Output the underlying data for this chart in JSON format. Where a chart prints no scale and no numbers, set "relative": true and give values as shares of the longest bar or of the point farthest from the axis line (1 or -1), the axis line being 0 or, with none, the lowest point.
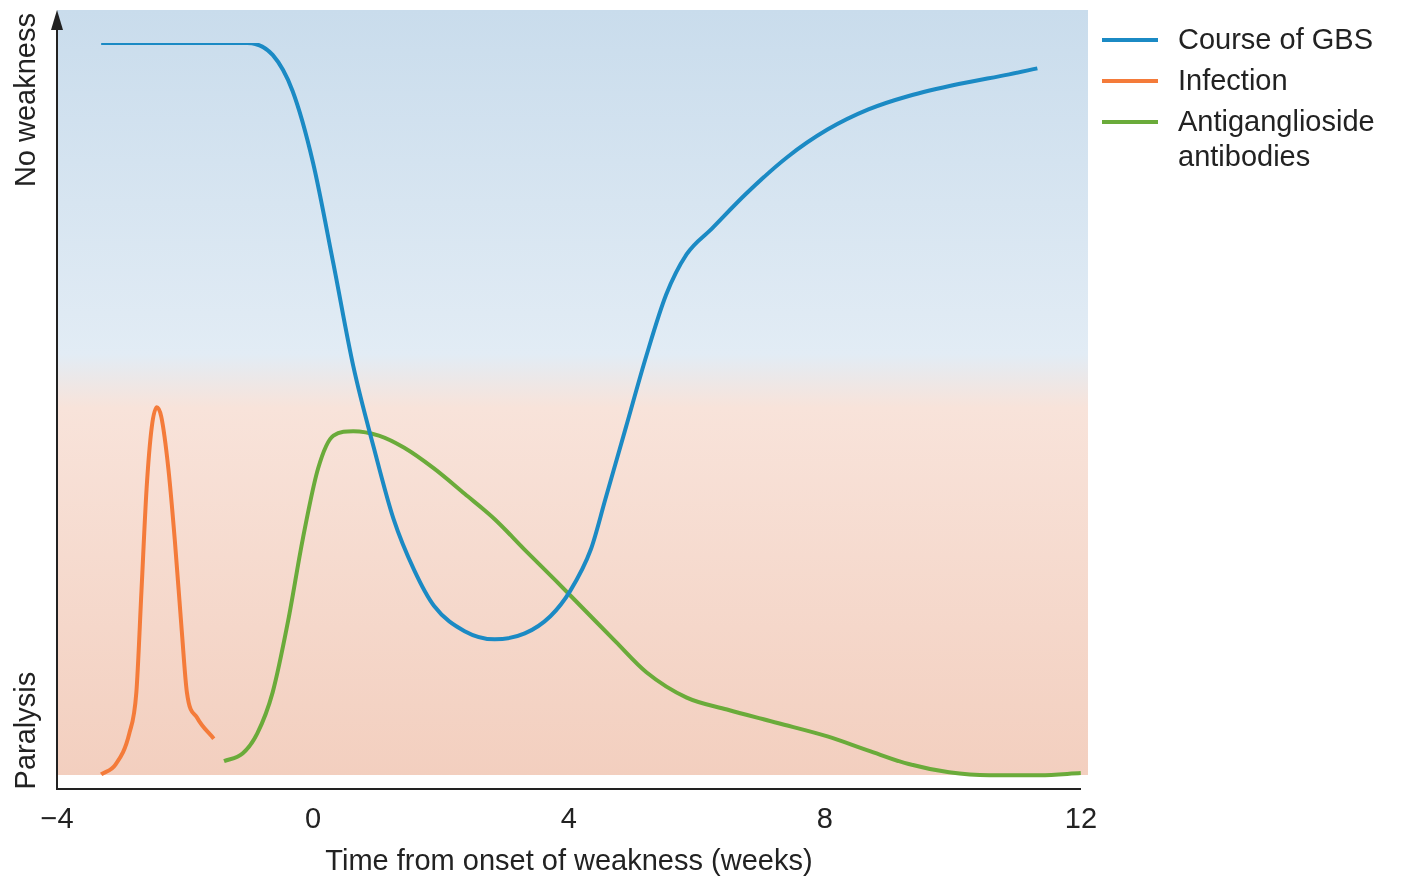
{
  "chart_data": {
    "type": "line",
    "relative": true,
    "xlabel": "Time from onset of weakness (weeks)",
    "xlim": [
      -4,
      12
    ],
    "xticks": [
      {
        "value": -4,
        "label": "−4"
      },
      0,
      4,
      8,
      12
    ],
    "grid": false,
    "legend": "top right",
    "marker": "none",
    "line_style": "solid",
    "annotations": [
      "No weakness",
      "Paralysis"
    ],
    "series": [
      {
        "name": "Course of GBS",
        "color": "#1b8ac4",
        "x": [
          -3.31,
          -1.03,
          -0.63,
          -0.32,
          0,
          0.32,
          0.63,
          0.95,
          1.26,
          1.58,
          1.89,
          2.37,
          2.84,
          3.31,
          3.71,
          4.02,
          4.34,
          4.57,
          4.89,
          5.21,
          5.52,
          5.84,
          6.23,
          6.78,
          7.41,
          8.04,
          8.68,
          9.31,
          10.09,
          10.88,
          11.32
        ],
        "values": [
          1.0,
          1.0,
          0.984,
          0.936,
          0.84,
          0.704,
          0.567,
          0.458,
          0.362,
          0.294,
          0.246,
          0.212,
          0.201,
          0.209,
          0.232,
          0.266,
          0.321,
          0.389,
          0.485,
          0.581,
          0.663,
          0.717,
          0.751,
          0.799,
          0.847,
          0.884,
          0.911,
          0.929,
          0.945,
          0.958,
          0.966
        ]
      },
      {
        "name": "Infection",
        "color": "#f47b3a",
        "x": [
          -3.31,
          -3.08,
          -2.87,
          -2.76,
          -2.68,
          -2.6,
          -2.52,
          -2.44,
          -2.37,
          -2.26,
          -2.16,
          -2.05,
          -1.97,
          -1.81,
          -1.55
        ],
        "values": [
          0.02,
          0.034,
          0.075,
          0.13,
          0.266,
          0.403,
          0.485,
          0.512,
          0.499,
          0.43,
          0.335,
          0.212,
          0.13,
          0.096,
          0.068
        ]
      },
      {
        "name": "Antiganglioside antibodies",
        "color": "#6aab3a",
        "x": [
          -1.39,
          -1.1,
          -0.87,
          -0.63,
          -0.39,
          -0.16,
          0.08,
          0.32,
          0.63,
          1.03,
          1.42,
          1.89,
          2.37,
          2.84,
          3.31,
          3.79,
          4.26,
          4.73,
          5.21,
          5.84,
          6.47,
          7.26,
          8.04,
          8.68,
          9.31,
          9.94,
          10.57,
          11.36,
          12.0
        ],
        "values": [
          0.038,
          0.048,
          0.075,
          0.13,
          0.225,
          0.335,
          0.43,
          0.474,
          0.48,
          0.474,
          0.458,
          0.43,
          0.396,
          0.362,
          0.321,
          0.28,
          0.239,
          0.198,
          0.157,
          0.123,
          0.107,
          0.089,
          0.071,
          0.052,
          0.034,
          0.023,
          0.019,
          0.019,
          0.022
        ]
      }
    ]
  }
}
